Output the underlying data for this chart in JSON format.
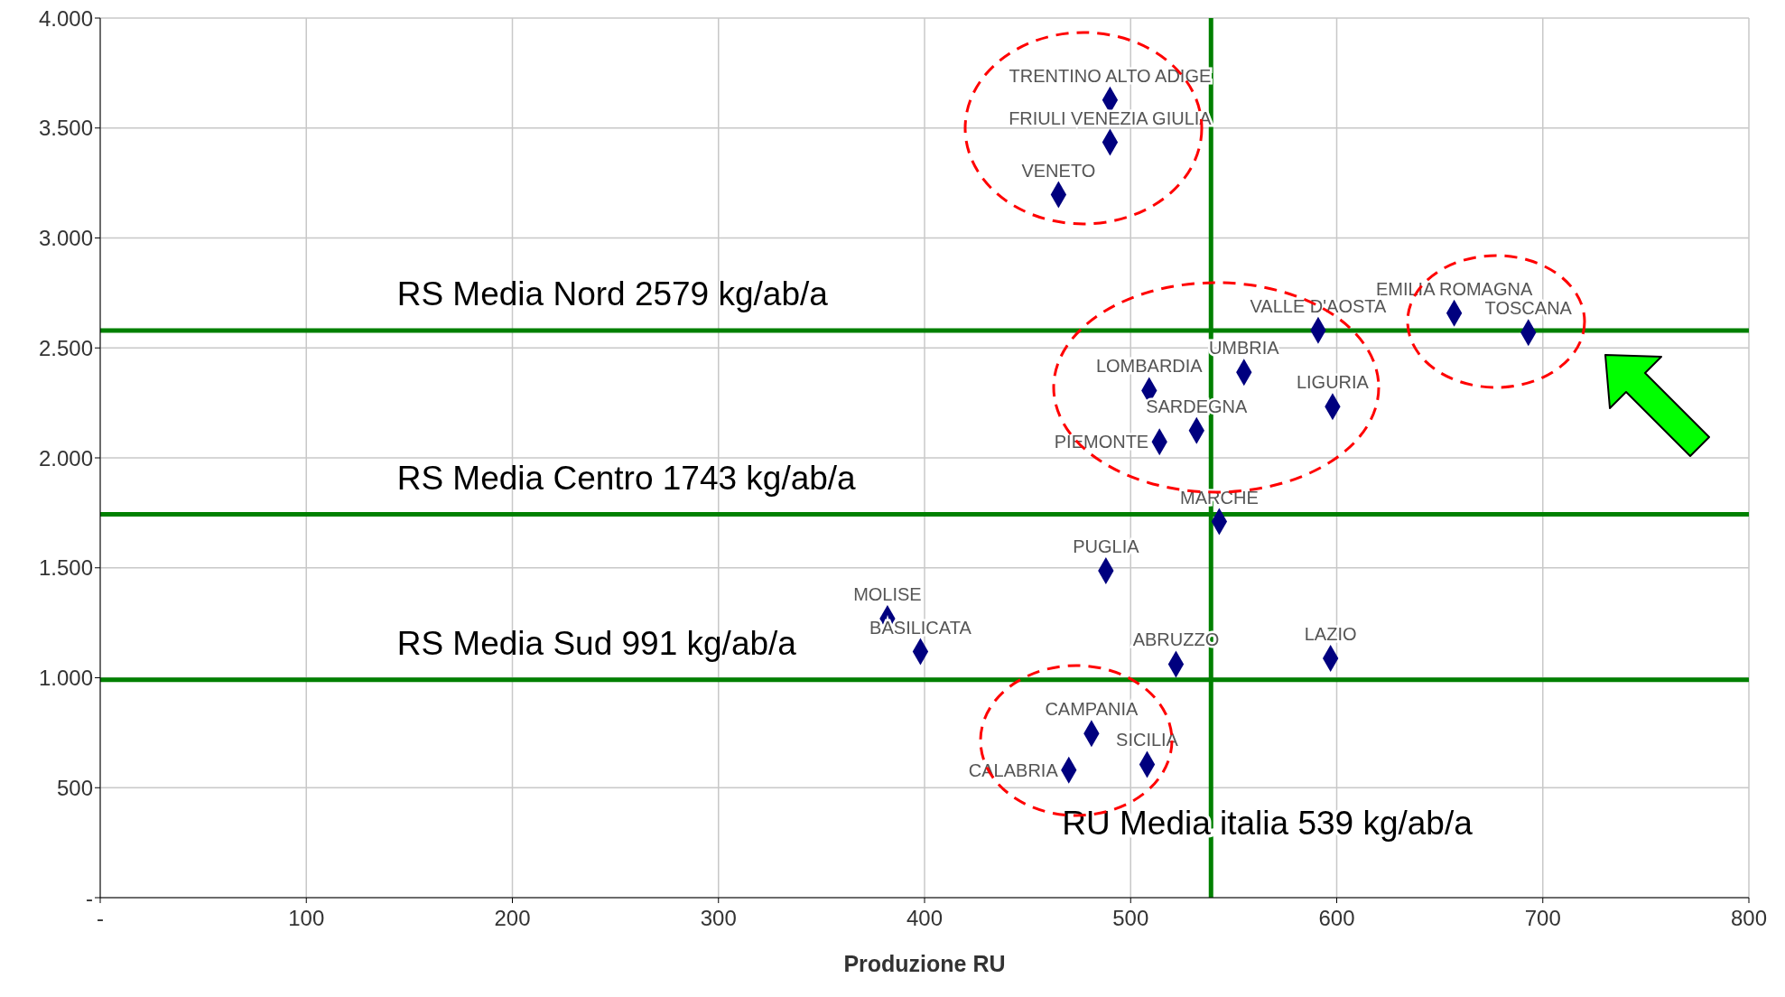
{
  "chart_data": {
    "type": "scatter",
    "xlabel": "Produzione RU",
    "x": [
      490,
      490,
      465,
      657,
      693,
      591,
      555,
      509,
      598,
      532,
      514,
      543,
      488,
      382,
      398,
      522,
      597,
      481,
      508,
      470
    ],
    "values": [
      3627,
      3435,
      3197,
      2658,
      2570,
      2580,
      2389,
      2306,
      2233,
      2124,
      2073,
      1710,
      1487,
      1269,
      1119,
      1062,
      1088,
      746,
      606,
      580
    ],
    "color": "#00007f",
    "marker": "diamond",
    "xlim": [
      0,
      800
    ],
    "xticks": [
      {
        "value": 0,
        "label": "-"
      },
      100,
      200,
      300,
      400,
      500,
      600,
      700,
      800
    ],
    "ylim": [
      0,
      4000
    ],
    "yticks": [
      {
        "value": 0,
        "label": "-"
      },
      500,
      {
        "value": 1000,
        "label": "1.000"
      },
      {
        "value": 1500,
        "label": "1.500"
      },
      {
        "value": 2000,
        "label": "2.000"
      },
      {
        "value": 2500,
        "label": "2.500"
      },
      {
        "value": 3000,
        "label": "3.000"
      },
      {
        "value": 3500,
        "label": "3.500"
      },
      {
        "value": 4000,
        "label": "4.000"
      }
    ],
    "grid": true,
    "ref_lines": [
      {
        "axis": "y",
        "value": 2579,
        "label": "RS Media Nord 2579 kg/ab/a",
        "color": "#008000"
      },
      {
        "axis": "y",
        "value": 1743,
        "label": "RS Media Centro 1743 kg/ab/a",
        "color": "#008000"
      },
      {
        "axis": "y",
        "value": 991,
        "label": "RS Media Sud 991 kg/ab/a",
        "color": "#008000"
      },
      {
        "axis": "x",
        "value": 539,
        "label": "RU Media italia 539 kg/ab/a",
        "color": "#008000"
      }
    ],
    "annotations": [
      {
        "text": "TRENTINO ALTO ADIGE",
        "x": 490,
        "y": 3627
      },
      {
        "text": "FRIULI VENEZIA GIULIA",
        "x": 490,
        "y": 3435
      },
      {
        "text": "VENETO",
        "x": 465,
        "y": 3197
      },
      {
        "text": "EMILIA ROMAGNA",
        "x": 657,
        "y": 2658
      },
      {
        "text": "TOSCANA",
        "x": 693,
        "y": 2570
      },
      {
        "text": "VALLE D'AOSTA",
        "x": 591,
        "y": 2580
      },
      {
        "text": "UMBRIA",
        "x": 555,
        "y": 2389
      },
      {
        "text": "LOMBARDIA",
        "x": 509,
        "y": 2306
      },
      {
        "text": "LIGURIA",
        "x": 598,
        "y": 2233
      },
      {
        "text": "SARDEGNA",
        "x": 532,
        "y": 2124
      },
      {
        "text": "PIEMONTE",
        "x": 514,
        "y": 2073
      },
      {
        "text": "MARCHE",
        "x": 543,
        "y": 1710
      },
      {
        "text": "PUGLIA",
        "x": 488,
        "y": 1487
      },
      {
        "text": "MOLISE",
        "x": 382,
        "y": 1269
      },
      {
        "text": "BASILICATA",
        "x": 398,
        "y": 1119
      },
      {
        "text": "ABRUZZO",
        "x": 522,
        "y": 1062
      },
      {
        "text": "LAZIO",
        "x": 597,
        "y": 1088
      },
      {
        "text": "CAMPANIA",
        "x": 481,
        "y": 746
      },
      {
        "text": "SICILIA",
        "x": 508,
        "y": 606
      },
      {
        "text": "CALABRIA",
        "x": 470,
        "y": 580
      }
    ]
  }
}
